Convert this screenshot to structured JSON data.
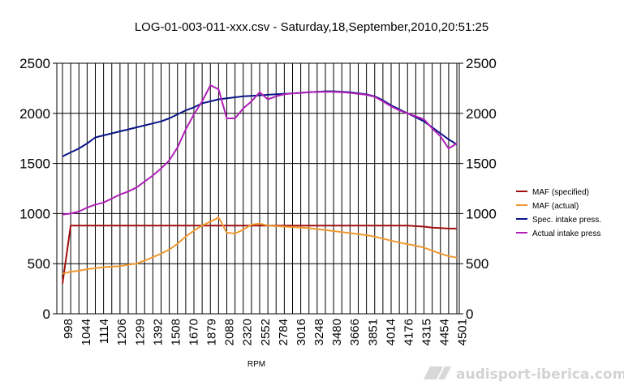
{
  "chart_data": {
    "type": "line",
    "title": "LOG-01-003-011-xxx.csv - Saturday,18,September,2010,20:51:25",
    "xlabel": "RPM",
    "ylabel": "",
    "ylim": [
      0,
      2500
    ],
    "yticks": [
      0,
      500,
      1000,
      1500,
      2000,
      2500
    ],
    "x_tick_labels": [
      "998",
      "1044",
      "1114",
      "1206",
      "1299",
      "1392",
      "1508",
      "1670",
      "1879",
      "2088",
      "2320",
      "2552",
      "2784",
      "3016",
      "3248",
      "3480",
      "3666",
      "3851",
      "4014",
      "4176",
      "4315",
      "4454",
      "4501"
    ],
    "grid": "vertical lines at every sample; horizontal lines at y-ticks",
    "secondary_axis": "right, same scale",
    "legend": "right",
    "series": [
      {
        "name": "MAF (specified)",
        "color": "#a01010",
        "values": [
          300,
          880,
          880,
          880,
          880,
          880,
          880,
          880,
          880,
          880,
          880,
          880,
          880,
          880,
          880,
          880,
          880,
          880,
          880,
          880,
          880,
          880,
          880,
          880,
          880,
          880,
          880,
          880,
          880,
          880,
          880,
          880,
          880,
          880,
          880,
          880,
          880,
          880,
          880,
          880,
          880,
          880,
          880,
          875,
          870,
          860,
          855,
          850,
          850
        ]
      },
      {
        "name": "MAF (actual)",
        "color": "#f0982e",
        "values": [
          400,
          420,
          430,
          445,
          455,
          465,
          470,
          475,
          490,
          500,
          530,
          565,
          600,
          640,
          700,
          770,
          830,
          880,
          920,
          960,
          810,
          800,
          840,
          890,
          900,
          880,
          875,
          870,
          865,
          860,
          855,
          845,
          835,
          825,
          815,
          805,
          795,
          785,
          770,
          750,
          730,
          710,
          695,
          680,
          660,
          630,
          600,
          575,
          560
        ]
      },
      {
        "name": "Spec. intake press.",
        "color": "#0a1488",
        "values": [
          1570,
          1610,
          1650,
          1700,
          1760,
          1780,
          1800,
          1820,
          1840,
          1860,
          1880,
          1900,
          1920,
          1950,
          1990,
          2030,
          2060,
          2100,
          2120,
          2140,
          2150,
          2160,
          2170,
          2175,
          2180,
          2185,
          2190,
          2195,
          2200,
          2205,
          2210,
          2215,
          2220,
          2220,
          2215,
          2210,
          2200,
          2190,
          2170,
          2130,
          2080,
          2040,
          2000,
          1960,
          1920,
          1860,
          1800,
          1740,
          1690
        ]
      },
      {
        "name": "Actual intake press",
        "color": "#b020b8",
        "values": [
          990,
          1000,
          1020,
          1060,
          1090,
          1110,
          1150,
          1190,
          1220,
          1260,
          1320,
          1380,
          1450,
          1530,
          1660,
          1840,
          1990,
          2120,
          2280,
          2240,
          1950,
          1950,
          2050,
          2120,
          2210,
          2140,
          2170,
          2190,
          2200,
          2205,
          2210,
          2215,
          2215,
          2215,
          2210,
          2205,
          2195,
          2185,
          2165,
          2120,
          2070,
          2030,
          2000,
          1970,
          1940,
          1850,
          1770,
          1650,
          1700
        ]
      }
    ]
  },
  "watermark": "audisport-iberica.com"
}
